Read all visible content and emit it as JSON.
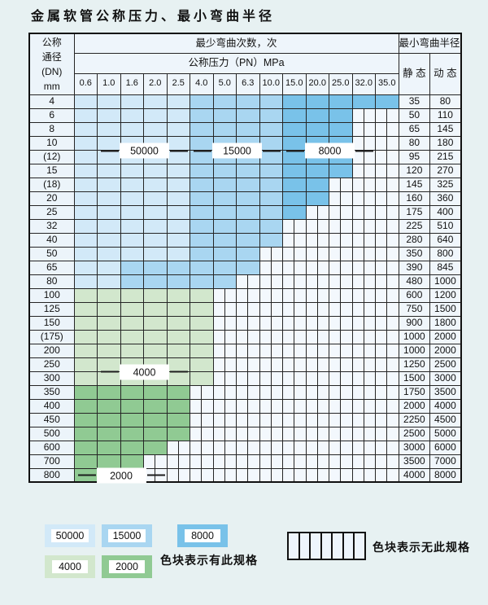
{
  "title": "金属软管公称压力、最小弯曲半径",
  "colors": {
    "b50000": "#d2e9f8",
    "b15000": "#a9d6f1",
    "b8000": "#79c2e9",
    "g4000": "#d2e7cd",
    "g2000": "#90ca93",
    "nospec": "#f3f8fd",
    "page_bg": "#e7f1f2",
    "grid": "#252525"
  },
  "table": {
    "header": {
      "dn_lines": [
        "公称",
        "通径",
        "(DN)",
        "mm"
      ],
      "cycles_title": "最少弯曲次数，次",
      "pressure_title": "公称压力（PN）MPa",
      "pressures": [
        "0.6",
        "1.0",
        "1.6",
        "2.0",
        "2.5",
        "4.0",
        "5.0",
        "6.3",
        "10.0",
        "15.0",
        "20.0",
        "25.0",
        "32.0",
        "35.0"
      ],
      "radius_title": "最小弯曲半径",
      "static_label": "静 态",
      "dynamic_label": "动 态"
    },
    "rows": [
      {
        "dn": "4",
        "segments": [
          [
            "b50000",
            5
          ],
          [
            "b15000",
            4
          ],
          [
            "b8000",
            5
          ]
        ],
        "static": "35",
        "dynamic": "80"
      },
      {
        "dn": "6",
        "segments": [
          [
            "b50000",
            5
          ],
          [
            "b15000",
            4
          ],
          [
            "b8000",
            3
          ]
        ],
        "static": "50",
        "dynamic": "110"
      },
      {
        "dn": "8",
        "segments": [
          [
            "b50000",
            5
          ],
          [
            "b15000",
            4
          ],
          [
            "b8000",
            3
          ]
        ],
        "static": "65",
        "dynamic": "145"
      },
      {
        "dn": "10",
        "segments": [
          [
            "b50000",
            5
          ],
          [
            "b15000",
            4
          ],
          [
            "b8000",
            3
          ]
        ],
        "static": "80",
        "dynamic": "180"
      },
      {
        "dn": "(12)",
        "segments": [
          [
            "b50000",
            5
          ],
          [
            "b15000",
            4
          ],
          [
            "b8000",
            3
          ]
        ],
        "static": "95",
        "dynamic": "215"
      },
      {
        "dn": "15",
        "segments": [
          [
            "b50000",
            5
          ],
          [
            "b15000",
            4
          ],
          [
            "b8000",
            3
          ]
        ],
        "static": "120",
        "dynamic": "270"
      },
      {
        "dn": "(18)",
        "segments": [
          [
            "b50000",
            5
          ],
          [
            "b15000",
            4
          ],
          [
            "b8000",
            2
          ]
        ],
        "static": "145",
        "dynamic": "325"
      },
      {
        "dn": "20",
        "segments": [
          [
            "b50000",
            5
          ],
          [
            "b15000",
            4
          ],
          [
            "b8000",
            2
          ]
        ],
        "static": "160",
        "dynamic": "360"
      },
      {
        "dn": "25",
        "segments": [
          [
            "b50000",
            5
          ],
          [
            "b15000",
            4
          ],
          [
            "b8000",
            1
          ]
        ],
        "static": "175",
        "dynamic": "400"
      },
      {
        "dn": "32",
        "segments": [
          [
            "b50000",
            5
          ],
          [
            "b15000",
            4
          ]
        ],
        "static": "225",
        "dynamic": "510"
      },
      {
        "dn": "40",
        "segments": [
          [
            "b50000",
            5
          ],
          [
            "b15000",
            4
          ]
        ],
        "static": "280",
        "dynamic": "640"
      },
      {
        "dn": "50",
        "segments": [
          [
            "b50000",
            5
          ],
          [
            "b15000",
            3
          ]
        ],
        "static": "350",
        "dynamic": "800"
      },
      {
        "dn": "65",
        "segments": [
          [
            "b50000",
            2
          ],
          [
            "b15000",
            6
          ]
        ],
        "static": "390",
        "dynamic": "845"
      },
      {
        "dn": "80",
        "segments": [
          [
            "b50000",
            2
          ],
          [
            "b15000",
            5
          ]
        ],
        "static": "480",
        "dynamic": "1000"
      },
      {
        "dn": "100",
        "segments": [
          [
            "g4000",
            6
          ]
        ],
        "static": "600",
        "dynamic": "1200"
      },
      {
        "dn": "125",
        "segments": [
          [
            "g4000",
            6
          ]
        ],
        "static": "750",
        "dynamic": "1500"
      },
      {
        "dn": "150",
        "segments": [
          [
            "g4000",
            6
          ]
        ],
        "static": "900",
        "dynamic": "1800"
      },
      {
        "dn": "(175)",
        "segments": [
          [
            "g4000",
            6
          ]
        ],
        "static": "1000",
        "dynamic": "2000"
      },
      {
        "dn": "200",
        "segments": [
          [
            "g4000",
            6
          ]
        ],
        "static": "1000",
        "dynamic": "2000"
      },
      {
        "dn": "250",
        "segments": [
          [
            "g4000",
            6
          ]
        ],
        "static": "1250",
        "dynamic": "2500"
      },
      {
        "dn": "300",
        "segments": [
          [
            "g4000",
            6
          ]
        ],
        "static": "1500",
        "dynamic": "3000"
      },
      {
        "dn": "350",
        "segments": [
          [
            "g2000",
            5
          ]
        ],
        "static": "1750",
        "dynamic": "3500"
      },
      {
        "dn": "400",
        "segments": [
          [
            "g2000",
            5
          ]
        ],
        "static": "2000",
        "dynamic": "4000"
      },
      {
        "dn": "450",
        "segments": [
          [
            "g2000",
            5
          ]
        ],
        "static": "2250",
        "dynamic": "4500"
      },
      {
        "dn": "500",
        "segments": [
          [
            "g2000",
            5
          ]
        ],
        "static": "2500",
        "dynamic": "5000"
      },
      {
        "dn": "600",
        "segments": [
          [
            "g2000",
            4
          ]
        ],
        "static": "3000",
        "dynamic": "6000"
      },
      {
        "dn": "700",
        "segments": [
          [
            "g2000",
            3
          ]
        ],
        "static": "3500",
        "dynamic": "7000"
      },
      {
        "dn": "800",
        "segments": [
          [
            "g2000",
            3
          ]
        ],
        "static": "4000",
        "dynamic": "8000"
      }
    ],
    "overlay_labels": [
      {
        "text": "50000",
        "row": "10",
        "col_start": 2,
        "col_span": 2
      },
      {
        "text": "15000",
        "row": "10",
        "col_start": 6,
        "col_span": 2
      },
      {
        "text": "8000",
        "row": "10",
        "col_start": 10,
        "col_span": 2
      },
      {
        "text": "4000",
        "row": "200",
        "col_start": 2,
        "col_span": 2
      },
      {
        "text": "2000",
        "row": "600",
        "col_start": 1,
        "col_span": 2
      }
    ]
  },
  "legend": {
    "items": [
      {
        "value": "50000",
        "color": "b50000"
      },
      {
        "value": "15000",
        "color": "b15000"
      },
      {
        "value": "8000",
        "color": "b8000"
      },
      {
        "value": "4000",
        "color": "g4000"
      },
      {
        "value": "2000",
        "color": "g2000"
      }
    ],
    "has_spec_text": "色块表示有此规格",
    "no_spec_text": "色块表示无此规格",
    "no_spec_stripes": 7
  }
}
